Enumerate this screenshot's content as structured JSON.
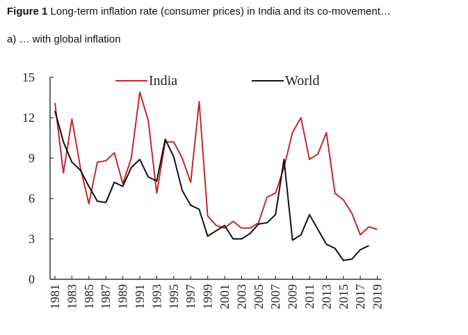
{
  "caption": {
    "figure_label": "Figure 1",
    "text": "Long-term inflation rate (consumer prices) in India and its co-movement…"
  },
  "subcaption": "a) … with global inflation",
  "chart_data": {
    "type": "line",
    "title": "",
    "xlabel": "",
    "ylabel": "",
    "ylim": [
      0,
      15
    ],
    "y_ticks": [
      0,
      3,
      6,
      9,
      12,
      15
    ],
    "x_tick_labels": [
      "1981",
      "1983",
      "1985",
      "1987",
      "1989",
      "1991",
      "1993",
      "1995",
      "1997",
      "1999",
      "2001",
      "2003",
      "2005",
      "2007",
      "2009",
      "2011",
      "2013",
      "2015",
      "2017",
      "2019"
    ],
    "legend_position": "top",
    "grid": false,
    "series": [
      {
        "name": "India",
        "color": "#c0282d",
        "x": [
          1981,
          1982,
          1983,
          1984,
          1985,
          1986,
          1987,
          1988,
          1989,
          1990,
          1991,
          1992,
          1993,
          1994,
          1995,
          1996,
          1997,
          1998,
          1999,
          2000,
          2001,
          2002,
          2003,
          2004,
          2005,
          2006,
          2007,
          2008,
          2009,
          2010,
          2011,
          2012,
          2013,
          2014,
          2015,
          2016,
          2017,
          2018,
          2019
        ],
        "values": [
          13.1,
          7.9,
          11.9,
          8.3,
          5.6,
          8.7,
          8.8,
          9.4,
          7.1,
          9.0,
          13.9,
          11.8,
          6.4,
          10.2,
          10.2,
          9.0,
          7.2,
          13.2,
          4.7,
          4.0,
          3.8,
          4.3,
          3.8,
          3.8,
          4.2,
          6.1,
          6.4,
          8.3,
          10.9,
          12.0,
          8.9,
          9.3,
          10.9,
          6.4,
          5.9,
          4.9,
          3.3,
          3.9,
          3.7
        ]
      },
      {
        "name": "World",
        "color": "#111111",
        "x": [
          1981,
          1982,
          1983,
          1984,
          1985,
          1986,
          1987,
          1988,
          1989,
          1990,
          1991,
          1992,
          1993,
          1994,
          1995,
          1996,
          1997,
          1998,
          1999,
          2000,
          2001,
          2002,
          2003,
          2004,
          2005,
          2006,
          2007,
          2008,
          2009,
          2010,
          2011,
          2012,
          2013,
          2014,
          2015,
          2016,
          2017,
          2018
        ],
        "values": [
          12.5,
          10.2,
          8.7,
          8.1,
          6.9,
          5.8,
          5.7,
          7.2,
          6.9,
          8.3,
          8.9,
          7.6,
          7.3,
          10.4,
          9.1,
          6.6,
          5.5,
          5.2,
          3.2,
          3.6,
          4.0,
          3.0,
          3.0,
          3.4,
          4.1,
          4.2,
          4.8,
          8.9,
          2.9,
          3.3,
          4.8,
          3.7,
          2.6,
          2.3,
          1.4,
          1.5,
          2.2,
          2.5
        ]
      }
    ]
  }
}
